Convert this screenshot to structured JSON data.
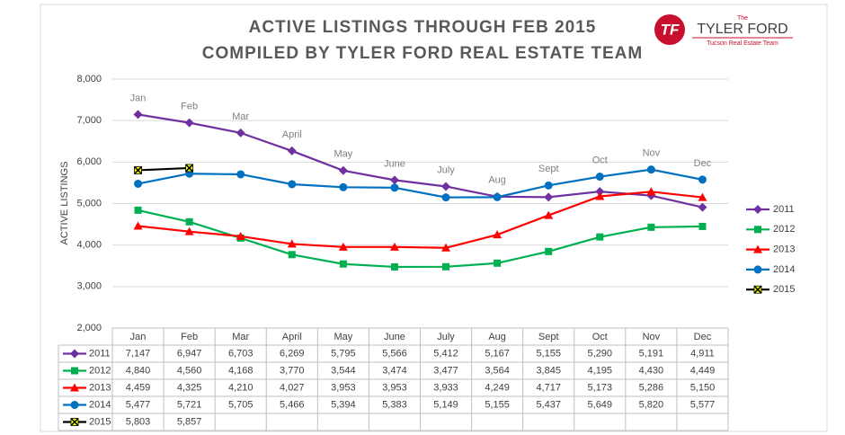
{
  "chart_data": {
    "type": "line",
    "title": "ACTIVE LISTINGS THROUGH FEB 2015",
    "subtitle": "COMPILED BY TYLER FORD REAL ESTATE TEAM",
    "y_label": "ACTIVE LISTINGS",
    "logo": {
      "monogram": "TF",
      "small": "The",
      "name": "TYLER FORD",
      "tagline": "Tucson Real Estate Team"
    },
    "categories": [
      "Jan",
      "Feb",
      "Mar",
      "April",
      "May",
      "June",
      "July",
      "Aug",
      "Sept",
      "Oct",
      "Nov",
      "Dec"
    ],
    "ylim": [
      2000,
      8000
    ],
    "yticks": [
      {
        "value": 2000,
        "label": "2,000"
      },
      {
        "value": 3000,
        "label": "3,000"
      },
      {
        "value": 4000,
        "label": "4,000"
      },
      {
        "value": 5000,
        "label": "5,000"
      },
      {
        "value": 6000,
        "label": "6,000"
      },
      {
        "value": 7000,
        "label": "7,000"
      },
      {
        "value": 8000,
        "label": "8,000"
      }
    ],
    "grid": true,
    "legend": "right",
    "series": [
      {
        "name": "2011",
        "color": "#7030a0",
        "marker": "diamond",
        "values": [
          7147,
          6947,
          6703,
          6269,
          5795,
          5566,
          5412,
          5167,
          5155,
          5290,
          5191,
          4911
        ],
        "value_labels": [
          "7,147",
          "6,947",
          "6,703",
          "6,269",
          "5,795",
          "5,566",
          "5,412",
          "5,167",
          "5,155",
          "5,290",
          "5,191",
          "4,911"
        ]
      },
      {
        "name": "2012",
        "color": "#00b050",
        "marker": "square",
        "values": [
          4840,
          4560,
          4168,
          3770,
          3544,
          3474,
          3477,
          3564,
          3845,
          4195,
          4430,
          4449
        ],
        "value_labels": [
          "4,840",
          "4,560",
          "4,168",
          "3,770",
          "3,544",
          "3,474",
          "3,477",
          "3,564",
          "3,845",
          "4,195",
          "4,430",
          "4,449"
        ]
      },
      {
        "name": "2013",
        "color": "#ff0000",
        "marker": "triangle",
        "values": [
          4459,
          4325,
          4210,
          4027,
          3953,
          3953,
          3933,
          4249,
          4717,
          5173,
          5286,
          5150
        ],
        "value_labels": [
          "4,459",
          "4,325",
          "4,210",
          "4,027",
          "3,953",
          "3,953",
          "3,933",
          "4,249",
          "4,717",
          "5,173",
          "5,286",
          "5,150"
        ]
      },
      {
        "name": "2014",
        "color": "#0070c0",
        "marker": "circle",
        "values": [
          5477,
          5721,
          5705,
          5466,
          5394,
          5383,
          5149,
          5155,
          5437,
          5649,
          5820,
          5577
        ],
        "value_labels": [
          "5,477",
          "5,721",
          "5,705",
          "5,466",
          "5,394",
          "5,383",
          "5,149",
          "5,155",
          "5,437",
          "5,649",
          "5,820",
          "5,577"
        ]
      },
      {
        "name": "2015",
        "color": "#000000",
        "marker": "x",
        "values": [
          5803,
          5857,
          null,
          null,
          null,
          null,
          null,
          null,
          null,
          null,
          null,
          null
        ],
        "value_labels": [
          "5,803",
          "5,857",
          null,
          null,
          null,
          null,
          null,
          null,
          null,
          null,
          null,
          null
        ]
      }
    ]
  }
}
